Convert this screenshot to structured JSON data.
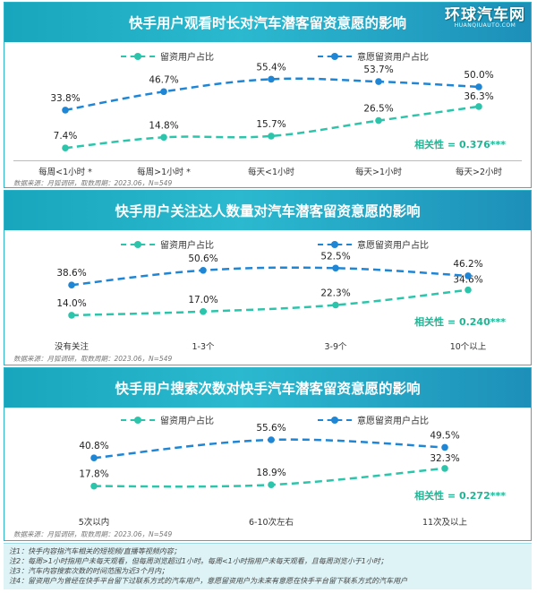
{
  "watermark": {
    "main": "环球汽车网",
    "sub": "HUANQIUAUTO.COM"
  },
  "colors": {
    "series_a": "#2cc5ab",
    "series_b": "#1f86d6",
    "accent": "#22b494"
  },
  "legend": {
    "series_a": "留资用户占比",
    "series_b": "意愿留资用户占比"
  },
  "chart_data": [
    {
      "type": "line",
      "title": "快手用户观看时长对汽车潜客留资意愿的影响",
      "categories": [
        "每周<1小时 *",
        "每周>1小时 *",
        "每天<1小时",
        "每天>1小时",
        "每天>2小时"
      ],
      "series": [
        {
          "name": "留资用户占比",
          "values": [
            7.4,
            14.8,
            15.7,
            26.5,
            36.3
          ],
          "labels": [
            "7.4%",
            "14.8%",
            "15.7%",
            "26.5%",
            "36.3%"
          ]
        },
        {
          "name": "意愿留资用户占比",
          "values": [
            33.8,
            46.7,
            55.4,
            53.7,
            50.0
          ],
          "labels": [
            "33.8%",
            "46.7%",
            "55.4%",
            "53.7%",
            "50.0%"
          ]
        }
      ],
      "ylim": [
        0,
        60
      ],
      "annotation": "相关性 = 0.376***",
      "source": "数据来源：月狐调研，取数周期：2023.06，N=549"
    },
    {
      "type": "line",
      "title": "快手用户关注达人数量对汽车潜客留资意愿的影响",
      "categories": [
        "没有关注",
        "1-3个",
        "3-9个",
        "10个以上"
      ],
      "series": [
        {
          "name": "留资用户占比",
          "values": [
            14.0,
            17.0,
            22.3,
            34.6
          ],
          "labels": [
            "14.0%",
            "17.0%",
            "22.3%",
            "34.6%"
          ]
        },
        {
          "name": "意愿留资用户占比",
          "values": [
            38.6,
            50.6,
            52.5,
            46.2
          ],
          "labels": [
            "38.6%",
            "50.6%",
            "52.5%",
            "46.2%"
          ]
        }
      ],
      "ylim": [
        0,
        60
      ],
      "annotation": "相关性 = 0.240***",
      "source": "数据来源：月狐调研，取数周期：2023.06，N=549"
    },
    {
      "type": "line",
      "title": "快手用户搜索次数对快手汽车潜客留资意愿的影响",
      "categories": [
        "5次以内",
        "6-10次左右",
        "11次及以上"
      ],
      "series": [
        {
          "name": "留资用户占比",
          "values": [
            17.8,
            18.9,
            32.3
          ],
          "labels": [
            "17.8%",
            "18.9%",
            "32.3%"
          ]
        },
        {
          "name": "意愿留资用户占比",
          "values": [
            40.8,
            55.6,
            49.5
          ],
          "labels": [
            "40.8%",
            "55.6%",
            "49.5%"
          ]
        }
      ],
      "ylim": [
        0,
        60
      ],
      "annotation": "相关性 = 0.272***",
      "source": "数据来源：月狐调研，取数周期：2023.06，N=549"
    }
  ],
  "notes": [
    "注1：快手内容指汽车相关的短视频/直播等视频内容；",
    "注2：每周>1小时指用户未每天观看，但每周浏览超过1小时。每周<1小时指用户未每天观看，且每周浏览小于1小时；",
    "注3：汽车内容搜索次数的时间范围为近3个月内；",
    "注4：留资用户为曾经在快手平台留下过联系方式的汽车用户，意愿留资用户为未来有意愿在快手平台留下联系方式的汽车用户"
  ]
}
